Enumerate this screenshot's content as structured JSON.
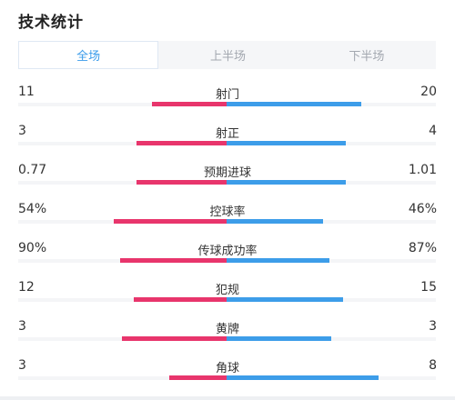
{
  "title": "技术统计",
  "tabs": [
    {
      "label": "全场",
      "active": true
    },
    {
      "label": "上半场",
      "active": false
    },
    {
      "label": "下半场",
      "active": false
    }
  ],
  "colors": {
    "home": "#e8356c",
    "away": "#3d9de9",
    "tab_active": "#3a9bea",
    "tab_inactive": "#a3a8b0"
  },
  "stats": [
    {
      "label": "射门",
      "home": "11",
      "away": "20",
      "home_value": 11,
      "away_value": 20
    },
    {
      "label": "射正",
      "home": "3",
      "away": "4",
      "home_value": 3,
      "away_value": 4
    },
    {
      "label": "预期进球",
      "home": "0.77",
      "away": "1.01",
      "home_value": 0.77,
      "away_value": 1.01
    },
    {
      "label": "控球率",
      "home": "54%",
      "away": "46%",
      "home_value": 54,
      "away_value": 46
    },
    {
      "label": "传球成功率",
      "home": "90%",
      "away": "87%",
      "home_value": 90,
      "away_value": 87
    },
    {
      "label": "犯规",
      "home": "12",
      "away": "15",
      "home_value": 12,
      "away_value": 15
    },
    {
      "label": "黄牌",
      "home": "3",
      "away": "3",
      "home_value": 3,
      "away_value": 3
    },
    {
      "label": "角球",
      "home": "3",
      "away": "8",
      "home_value": 3,
      "away_value": 8
    }
  ]
}
